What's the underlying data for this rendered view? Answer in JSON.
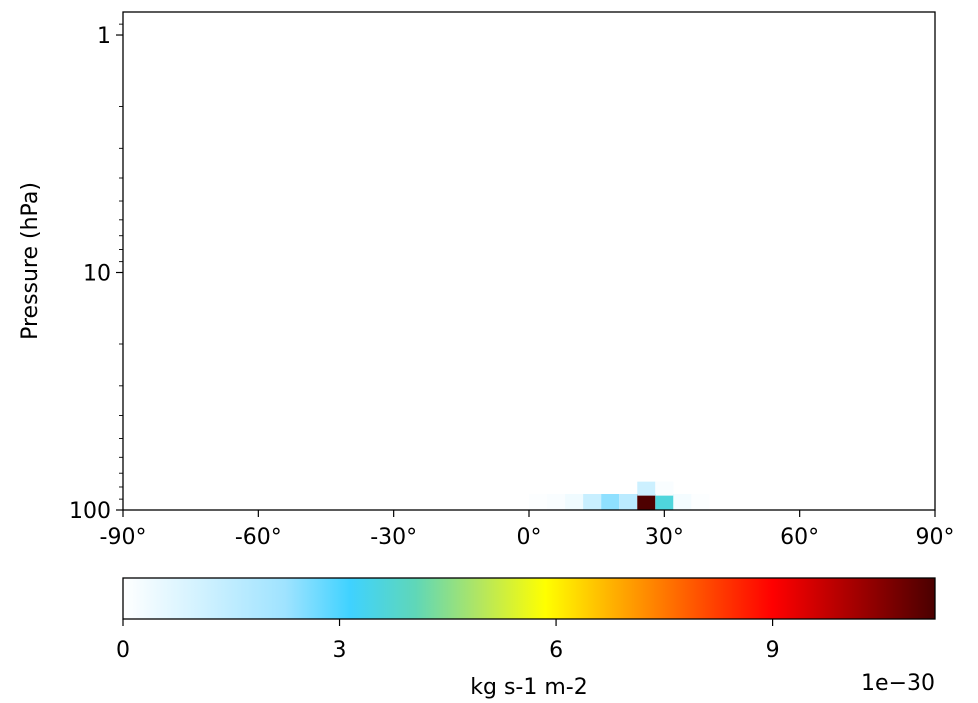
{
  "chart_data": {
    "type": "heatmap",
    "ylabel": "Pressure (hPa)",
    "xlabel": "",
    "title": "",
    "x_ticks": [
      {
        "value": -90,
        "label": "-90°"
      },
      {
        "value": -60,
        "label": "-60°"
      },
      {
        "value": -30,
        "label": "-30°"
      },
      {
        "value": 0,
        "label": "0°"
      },
      {
        "value": 30,
        "label": "30°"
      },
      {
        "value": 60,
        "label": "60°"
      },
      {
        "value": 90,
        "label": "90°"
      }
    ],
    "xlim": [
      -90,
      90
    ],
    "y_scale": "log",
    "y_inverted": true,
    "ylim": [
      100,
      0.8
    ],
    "y_ticks": [
      {
        "value": 1,
        "label": "1"
      },
      {
        "value": 10,
        "label": "10"
      },
      {
        "value": 100,
        "label": "100"
      }
    ],
    "cell_lat_width": 4,
    "cells": [
      {
        "lat": 0,
        "p": 100,
        "value": 0.08
      },
      {
        "lat": 4,
        "p": 100,
        "value": 0.15
      },
      {
        "lat": 8,
        "p": 100,
        "value": 0.35
      },
      {
        "lat": 12,
        "p": 100,
        "value": 1.3
      },
      {
        "lat": 16,
        "p": 100,
        "value": 2.4
      },
      {
        "lat": 20,
        "p": 100,
        "value": 1.6
      },
      {
        "lat": 24,
        "p": 100,
        "value": 11.2
      },
      {
        "lat": 28,
        "p": 100,
        "value": 3.6
      },
      {
        "lat": 32,
        "p": 100,
        "value": 0.25
      },
      {
        "lat": 36,
        "p": 100,
        "value": 0.08
      },
      {
        "lat": 24,
        "p": 87,
        "value": 1.2
      },
      {
        "lat": 28,
        "p": 87,
        "value": 0.15
      }
    ],
    "colorbar": {
      "label": "kg s-1 m-2",
      "multiplier": "1e−30",
      "min": 0,
      "max": 11.25,
      "ticks": [
        {
          "value": 0,
          "label": "0"
        },
        {
          "value": 3,
          "label": "3"
        },
        {
          "value": 6,
          "label": "6"
        },
        {
          "value": 9,
          "label": "9"
        }
      ],
      "stops": [
        {
          "offset": 0,
          "color": "#ffffff"
        },
        {
          "offset": 0.2,
          "color": "#9fe3ff"
        },
        {
          "offset": 0.28,
          "color": "#3fd2ff"
        },
        {
          "offset": 0.36,
          "color": "#5fd7b8"
        },
        {
          "offset": 0.44,
          "color": "#b3e660"
        },
        {
          "offset": 0.52,
          "color": "#ffff00"
        },
        {
          "offset": 0.6,
          "color": "#ffb300"
        },
        {
          "offset": 0.7,
          "color": "#ff5a00"
        },
        {
          "offset": 0.8,
          "color": "#ff0000"
        },
        {
          "offset": 0.9,
          "color": "#a50000"
        },
        {
          "offset": 1,
          "color": "#4a0000"
        }
      ]
    }
  }
}
